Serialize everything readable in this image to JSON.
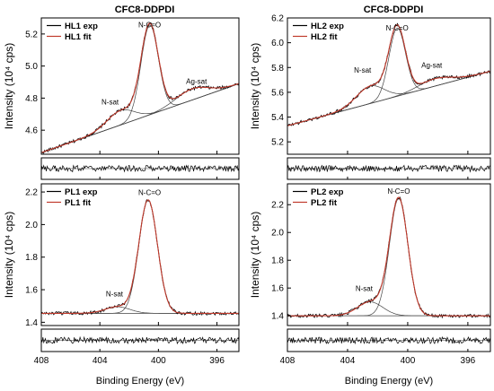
{
  "figure": {
    "x_axis_label": "Binding Energy (eV)",
    "colors": {
      "exp": "#000000",
      "fit": "#c0392b",
      "component": "#444444",
      "frame": "#000000"
    }
  },
  "chart_data": [
    {
      "type": "line",
      "title": "CFC8-DDPDI",
      "xlabel": "Binding Energy (eV)",
      "ylabel": "Intensity (10⁴ cps)",
      "xlim": [
        408,
        394.5
      ],
      "x_ticks": [
        408,
        404,
        400,
        396
      ],
      "ylim": [
        4.45,
        5.3
      ],
      "y_ticks": [
        4.6,
        4.8,
        5.0,
        5.2
      ],
      "legend": [
        "HL1 exp",
        "HL1 fit"
      ],
      "legend_position": "top-left",
      "baseline": [
        [
          408,
          4.46
        ],
        [
          394.5,
          4.89
        ]
      ],
      "components": [
        {
          "label": "N-sat",
          "center": 402.6,
          "height": 0.09,
          "width": 2.2
        },
        {
          "label": "N-C=O",
          "center": 400.6,
          "height": 0.56,
          "width": 1.4
        },
        {
          "label": "Ag-sat",
          "center": 397.7,
          "height": 0.07,
          "width": 2.6
        }
      ],
      "annotations": [
        {
          "text": "N-C=O",
          "x": 400.6,
          "y": 5.24
        },
        {
          "text": "N-sat",
          "x": 403.3,
          "y": 4.76
        },
        {
          "text": "Ag-sat",
          "x": 397.4,
          "y": 4.89
        }
      ]
    },
    {
      "type": "line",
      "title": "CFC8-DDPDI",
      "xlabel": "Binding Energy (eV)",
      "ylabel": "Intensity (10⁴ cps)",
      "xlim": [
        408,
        394.5
      ],
      "x_ticks": [
        408,
        404,
        400,
        396
      ],
      "ylim": [
        5.1,
        6.2
      ],
      "y_ticks": [
        5.2,
        5.4,
        5.6,
        5.8,
        6.0,
        6.2
      ],
      "legend": [
        "HL2 exp",
        "HL2 fit"
      ],
      "legend_position": "top-left",
      "baseline": [
        [
          408,
          5.33
        ],
        [
          394.5,
          5.77
        ]
      ],
      "components": [
        {
          "label": "N-sat",
          "center": 402.5,
          "height": 0.14,
          "width": 2.2
        },
        {
          "label": "N-C=O",
          "center": 400.7,
          "height": 0.55,
          "width": 1.3
        },
        {
          "label": "Ag-sat",
          "center": 398.2,
          "height": 0.06,
          "width": 2.6
        }
      ],
      "annotations": [
        {
          "text": "N-C=O",
          "x": 400.7,
          "y": 6.1
        },
        {
          "text": "N-sat",
          "x": 403.0,
          "y": 5.76
        },
        {
          "text": "Ag-sat",
          "x": 398.4,
          "y": 5.8
        }
      ]
    },
    {
      "type": "line",
      "title": "",
      "xlabel": "Binding Energy (eV)",
      "ylabel": "Intensity (10⁴ cps)",
      "xlim": [
        408,
        394.5
      ],
      "x_ticks": [
        408,
        404,
        400,
        396
      ],
      "ylim": [
        1.38,
        2.25
      ],
      "y_ticks": [
        1.4,
        1.6,
        1.8,
        2.0,
        2.2
      ],
      "legend": [
        "PL1 exp",
        "PL1 fit"
      ],
      "legend_position": "top-left",
      "baseline": [
        [
          408,
          1.455
        ],
        [
          394.5,
          1.455
        ]
      ],
      "components": [
        {
          "label": "N-sat",
          "center": 402.8,
          "height": 0.04,
          "width": 2.0
        },
        {
          "label": "N-C=O",
          "center": 400.7,
          "height": 0.695,
          "width": 1.5
        }
      ],
      "annotations": [
        {
          "text": "N-C=O",
          "x": 400.6,
          "y": 2.18
        },
        {
          "text": "N-sat",
          "x": 403.0,
          "y": 1.56
        }
      ]
    },
    {
      "type": "line",
      "title": "",
      "xlabel": "Binding Energy (eV)",
      "ylabel": "Intensity (10⁴ cps)",
      "xlim": [
        408,
        394.5
      ],
      "x_ticks": [
        408,
        404,
        400,
        396
      ],
      "ylim": [
        1.33,
        2.35
      ],
      "y_ticks": [
        1.4,
        1.6,
        1.8,
        2.0,
        2.2
      ],
      "legend": [
        "PL2 exp",
        "PL2 fit"
      ],
      "legend_position": "top-left",
      "baseline": [
        [
          408,
          1.4
        ],
        [
          394.5,
          1.4
        ]
      ],
      "components": [
        {
          "label": "N-sat",
          "center": 402.5,
          "height": 0.1,
          "width": 2.0
        },
        {
          "label": "N-C=O",
          "center": 400.6,
          "height": 0.845,
          "width": 1.45
        }
      ],
      "annotations": [
        {
          "text": "N-C=O",
          "x": 400.6,
          "y": 2.28
        },
        {
          "text": "N-sat",
          "x": 402.9,
          "y": 1.58
        }
      ]
    }
  ]
}
